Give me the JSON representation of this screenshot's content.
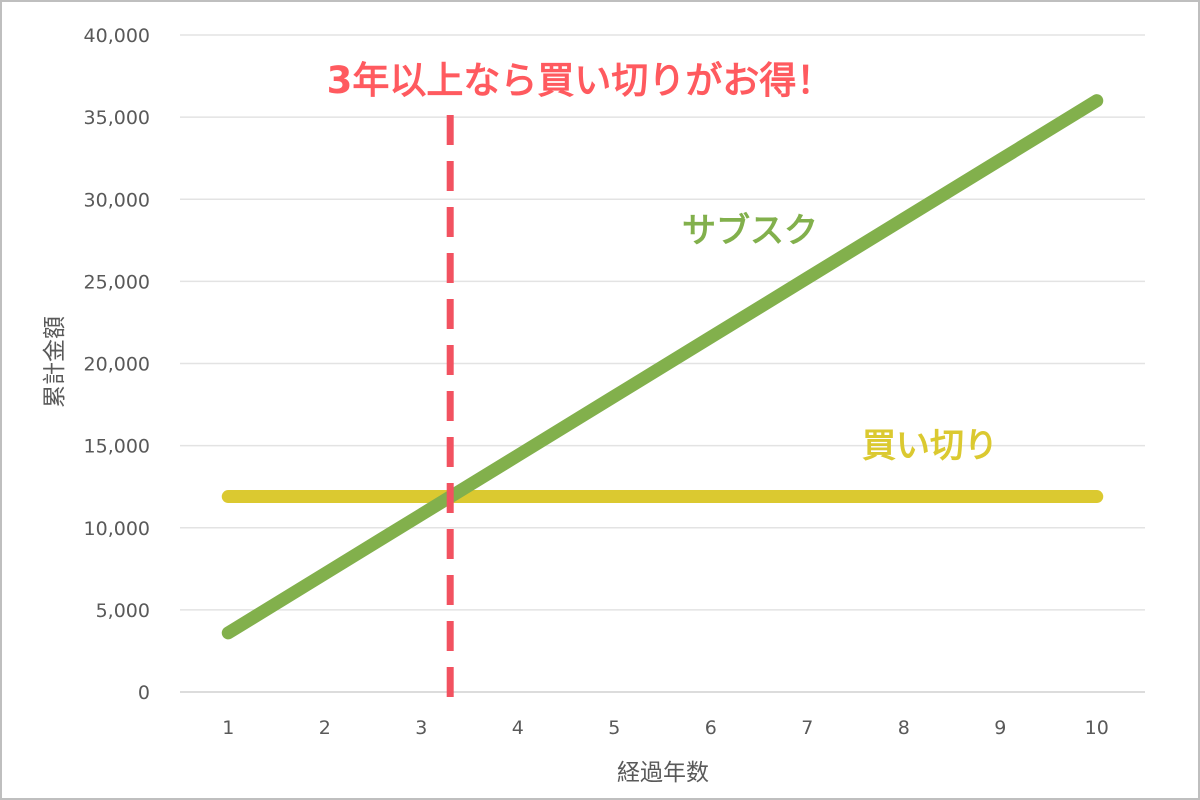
{
  "chart_data": {
    "type": "line",
    "annotation": "3年以上なら買い切りがお得！",
    "xlabel": "経過年数",
    "ylabel": "累計金額",
    "categories": [
      1,
      2,
      3,
      4,
      5,
      6,
      7,
      8,
      9,
      10
    ],
    "x_ticks": [
      "1",
      "2",
      "3",
      "4",
      "5",
      "6",
      "7",
      "8",
      "9",
      "10"
    ],
    "y_ticks": [
      "0",
      "5,000",
      "10,000",
      "15,000",
      "20,000",
      "25,000",
      "30,000",
      "35,000",
      "40,000"
    ],
    "ylim": [
      0,
      40000
    ],
    "grid": true,
    "series": [
      {
        "name": "サブスク",
        "color": "#82b04c",
        "values": [
          3600,
          7200,
          10800,
          14400,
          18000,
          21600,
          25200,
          28800,
          32400,
          36000
        ]
      },
      {
        "name": "買い切り",
        "color": "#dbc930",
        "values": [
          11900,
          11900,
          11900,
          11900,
          11900,
          11900,
          11900,
          11900,
          11900,
          11900
        ]
      }
    ],
    "breakeven_x": 3.3,
    "breakeven_color": "#f25260"
  }
}
